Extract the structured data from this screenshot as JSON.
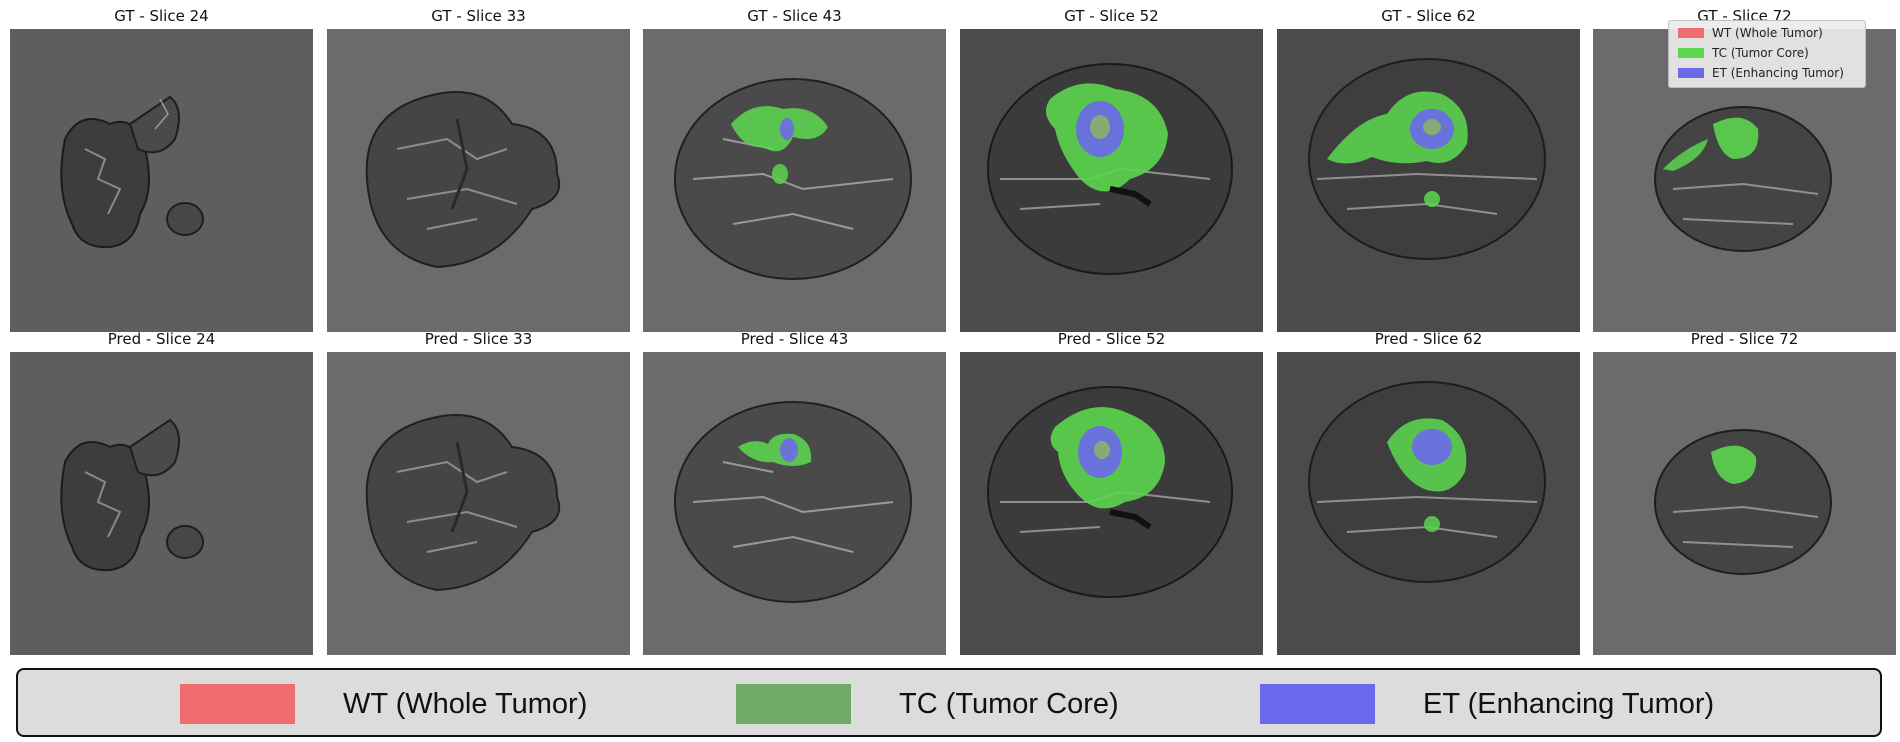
{
  "colors": {
    "wt": "#ef6d6d",
    "tc": "#5bd64e",
    "et": "#6a6ae6",
    "tc_legend": "#6fab66",
    "et_legend": "#6969ee",
    "background_gray": "#5c5c5c"
  },
  "gt_titles": [
    "GT - Slice 24",
    "GT - Slice 33",
    "GT - Slice 43",
    "GT - Slice 52",
    "GT - Slice 62",
    "GT - Slice 72"
  ],
  "pred_titles": [
    "Pred - Slice 24",
    "Pred - Slice 33",
    "Pred - Slice 43",
    "Pred - Slice 52",
    "Pred - Slice 62",
    "Pred - Slice 72"
  ],
  "mini_legend": {
    "wt": "WT (Whole Tumor)",
    "tc": "TC (Tumor Core)",
    "et": "ET (Enhancing Tumor)"
  },
  "legend": {
    "wt": "WT (Whole Tumor)",
    "tc": "TC (Tumor Core)",
    "et": "ET (Enhancing Tumor)"
  }
}
